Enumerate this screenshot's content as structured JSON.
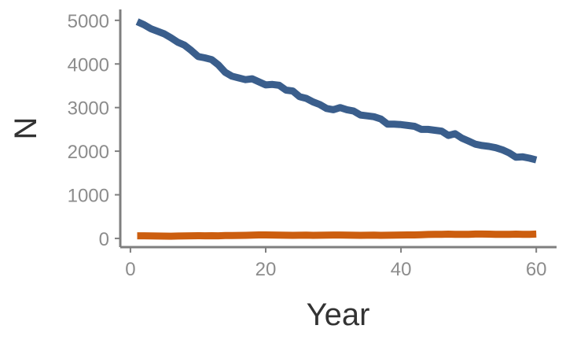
{
  "chart_data": {
    "type": "line",
    "title": "",
    "xlabel": "Year",
    "ylabel": "N",
    "xlim": [
      -1.5,
      63
    ],
    "ylim": [
      -200,
      5250
    ],
    "xticks": [
      0,
      20,
      40,
      60
    ],
    "yticks": [
      0,
      1000,
      2000,
      3000,
      4000,
      5000
    ],
    "grid": false,
    "legend": "none",
    "x": [
      1,
      2,
      3,
      4,
      5,
      6,
      7,
      8,
      9,
      10,
      11,
      12,
      13,
      14,
      15,
      16,
      17,
      18,
      19,
      20,
      21,
      22,
      23,
      24,
      25,
      26,
      27,
      28,
      29,
      30,
      31,
      32,
      33,
      34,
      35,
      36,
      37,
      38,
      39,
      40,
      41,
      42,
      43,
      44,
      45,
      46,
      47,
      48,
      49,
      50,
      51,
      52,
      53,
      54,
      55,
      56,
      57,
      58,
      59,
      60
    ],
    "series": [
      {
        "color": "#3a5e8c",
        "values": [
          4970,
          4900,
          4810,
          4750,
          4690,
          4600,
          4500,
          4430,
          4310,
          4170,
          4140,
          4100,
          3980,
          3810,
          3720,
          3680,
          3640,
          3660,
          3590,
          3520,
          3530,
          3510,
          3400,
          3380,
          3250,
          3210,
          3130,
          3070,
          2980,
          2950,
          3000,
          2950,
          2920,
          2830,
          2810,
          2790,
          2740,
          2620,
          2620,
          2610,
          2590,
          2570,
          2500,
          2500,
          2480,
          2460,
          2360,
          2400,
          2300,
          2230,
          2160,
          2130,
          2110,
          2080,
          2030,
          1960,
          1860,
          1870,
          1840,
          1800
        ]
      },
      {
        "color": "#cc5e0f",
        "values": [
          60,
          60,
          58,
          55,
          52,
          50,
          55,
          58,
          60,
          62,
          60,
          62,
          60,
          65,
          65,
          68,
          70,
          75,
          80,
          80,
          78,
          75,
          72,
          70,
          72,
          75,
          70,
          72,
          75,
          78,
          78,
          75,
          72,
          70,
          72,
          75,
          70,
          72,
          75,
          78,
          80,
          80,
          85,
          90,
          95,
          95,
          98,
          95,
          92,
          95,
          100,
          100,
          98,
          95,
          92,
          95,
          98,
          95,
          95,
          100
        ]
      }
    ]
  }
}
